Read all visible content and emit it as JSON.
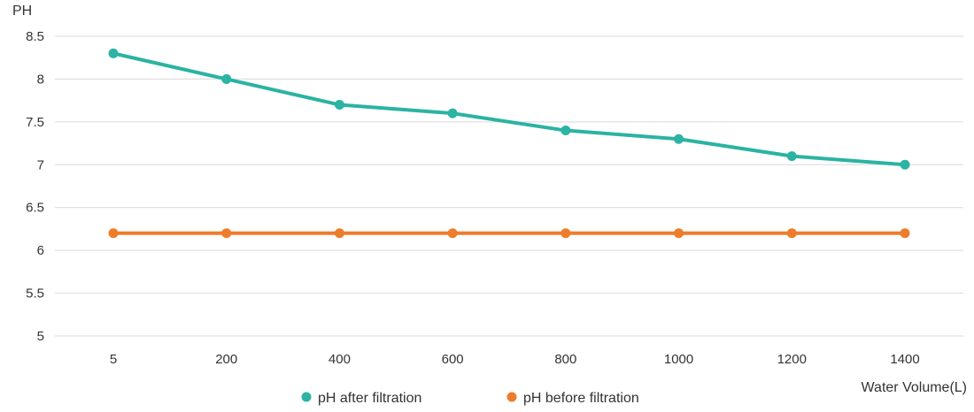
{
  "chart_data": {
    "type": "line",
    "ylabel": "PH",
    "xlabel": "Water Volume(L)",
    "categories": [
      "5",
      "200",
      "400",
      "600",
      "800",
      "1000",
      "1200",
      "1400"
    ],
    "ylim": [
      5,
      8.5
    ],
    "yticks": [
      "5",
      "5.5",
      "6",
      "6.5",
      "7",
      "7.5",
      "8",
      "8.5"
    ],
    "grid": "horizontal",
    "legend": "bottom-center",
    "series": [
      {
        "name": "pH after filtration",
        "color": "#2bb3a3",
        "values": [
          8.3,
          8.0,
          7.7,
          7.6,
          7.4,
          7.3,
          7.1,
          7.0
        ]
      },
      {
        "name": "pH before filtration",
        "color": "#ee7d2b",
        "values": [
          6.2,
          6.2,
          6.2,
          6.2,
          6.2,
          6.2,
          6.2,
          6.2
        ]
      }
    ]
  }
}
